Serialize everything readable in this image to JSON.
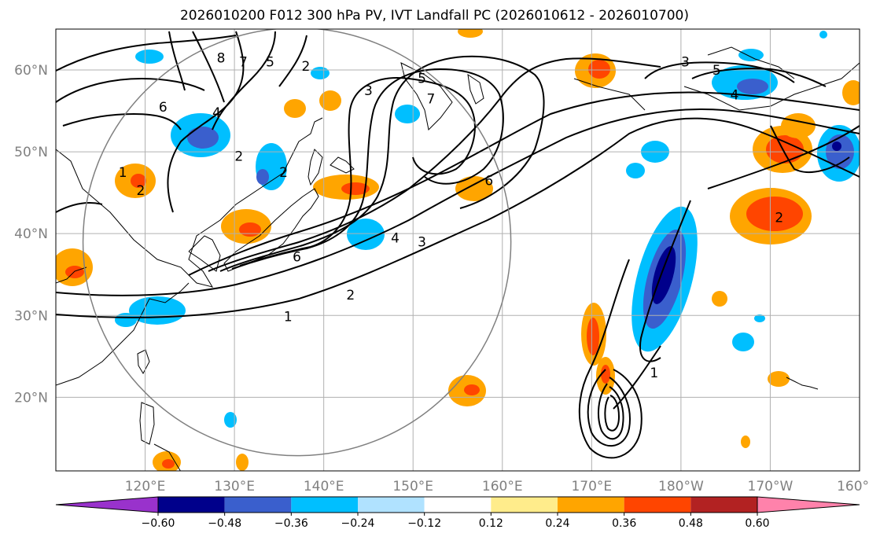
{
  "title": "2026010200 F012 300 hPa PV, IVT Landfall PC (2026010612 - 2026010700)",
  "map": {
    "projection": "PlateCarree",
    "lon_range": [
      110,
      200
    ],
    "lat_range": [
      11,
      65
    ],
    "lat_ticks": [
      {
        "value": 60,
        "label": "60°N"
      },
      {
        "value": 50,
        "label": "50°N"
      },
      {
        "value": 40,
        "label": "40°N"
      },
      {
        "value": 30,
        "label": "30°N"
      },
      {
        "value": 20,
        "label": "20°N"
      }
    ],
    "lon_ticks": [
      {
        "value": 120,
        "label": "120°E"
      },
      {
        "value": 130,
        "label": "130°E"
      },
      {
        "value": 140,
        "label": "140°E"
      },
      {
        "value": 150,
        "label": "150°E"
      },
      {
        "value": 160,
        "label": "160°E"
      },
      {
        "value": 170,
        "label": "170°E"
      },
      {
        "value": 180,
        "label": "180°W"
      },
      {
        "value": 190,
        "label": "170°W"
      },
      {
        "value": 200,
        "label": "160°W"
      }
    ],
    "circle": {
      "center_lon": 137,
      "center_lat": 39,
      "radius_deg": 25
    },
    "contour_labels": [
      {
        "text": "8",
        "lon": 128.5,
        "lat": 61.5
      },
      {
        "text": "7",
        "lon": 131,
        "lat": 61
      },
      {
        "text": "5",
        "lon": 134,
        "lat": 61
      },
      {
        "text": "2",
        "lon": 138,
        "lat": 60.5
      },
      {
        "text": "6",
        "lon": 122,
        "lat": 55.5
      },
      {
        "text": "4",
        "lon": 128,
        "lat": 54.8
      },
      {
        "text": "2",
        "lon": 130.5,
        "lat": 49.5
      },
      {
        "text": "1",
        "lon": 117.5,
        "lat": 47.5
      },
      {
        "text": "2",
        "lon": 119.5,
        "lat": 45.3
      },
      {
        "text": "2",
        "lon": 135.5,
        "lat": 47.5
      },
      {
        "text": "3",
        "lon": 145,
        "lat": 57.5
      },
      {
        "text": "5",
        "lon": 151,
        "lat": 59
      },
      {
        "text": "7",
        "lon": 152,
        "lat": 56.5
      },
      {
        "text": "6",
        "lon": 158.5,
        "lat": 46.5
      },
      {
        "text": "4",
        "lon": 148,
        "lat": 39.5
      },
      {
        "text": "3",
        "lon": 151,
        "lat": 39
      },
      {
        "text": "6",
        "lon": 137,
        "lat": 37.2
      },
      {
        "text": "2",
        "lon": 143,
        "lat": 32.5
      },
      {
        "text": "1",
        "lon": 136,
        "lat": 29.9
      },
      {
        "text": "3",
        "lon": 180.5,
        "lat": 61
      },
      {
        "text": "5",
        "lon": 184,
        "lat": 60
      },
      {
        "text": "4",
        "lon": 186,
        "lat": 57
      },
      {
        "text": "2",
        "lon": 191,
        "lat": 42
      },
      {
        "text": "1",
        "lon": 177,
        "lat": 23
      }
    ]
  },
  "colorbar": {
    "ticks": [
      "−0.60",
      "−0.48",
      "−0.36",
      "−0.24",
      "−0.12",
      "0.12",
      "0.24",
      "0.36",
      "0.48",
      "0.60"
    ],
    "colors": [
      "#9932cc",
      "#00008b",
      "#3a5fcd",
      "#00bfff",
      "#b0e2ff",
      "#ffffff",
      "#ffec8b",
      "#ffa500",
      "#ff4500",
      "#b22222",
      "#ff82ab"
    ]
  }
}
